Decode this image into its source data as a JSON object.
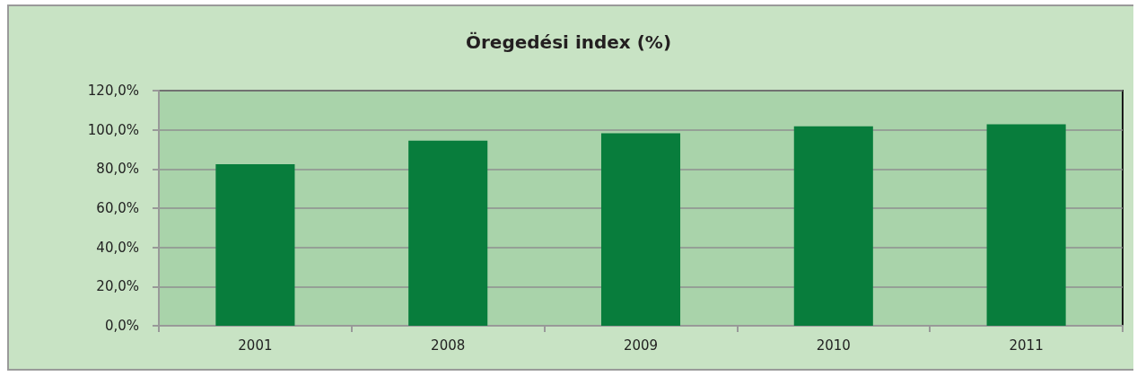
{
  "chart_data": {
    "type": "bar",
    "title": "Öregedési index (%)",
    "categories": [
      "2001",
      "2008",
      "2009",
      "2010",
      "2011"
    ],
    "values": [
      82.5,
      94.5,
      98.2,
      101.8,
      102.8
    ],
    "color": "#087d3c",
    "ylim": [
      0,
      120
    ],
    "yticks": [
      {
        "value": 0,
        "label": "0,0%"
      },
      {
        "value": 20,
        "label": "20,0%"
      },
      {
        "value": 40,
        "label": "40,0%"
      },
      {
        "value": 60,
        "label": "60,0%"
      },
      {
        "value": 80,
        "label": "80,0%"
      },
      {
        "value": 100,
        "label": "100,0%"
      },
      {
        "value": 120,
        "label": "120,0%"
      }
    ],
    "grid": "y"
  }
}
